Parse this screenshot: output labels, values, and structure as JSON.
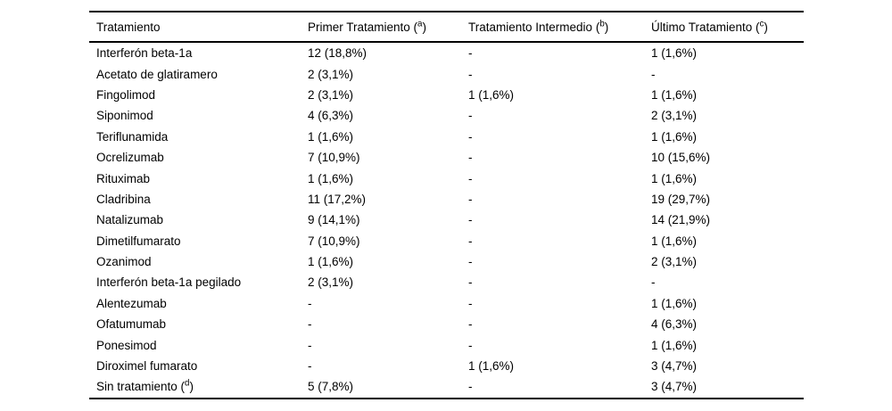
{
  "page": {
    "background_color": "#ffffff",
    "text_color": "#000000",
    "rule_color": "#000000"
  },
  "table": {
    "columns": [
      {
        "label": "Tratamiento",
        "sup": null
      },
      {
        "label": "Primer Tratamiento",
        "sup": "a"
      },
      {
        "label": "Tratamiento Intermedio",
        "sup": "b"
      },
      {
        "label": "Último Tratamiento",
        "sup": "c"
      }
    ],
    "rows": [
      {
        "name": "Interferón beta-1a",
        "sup": null,
        "cells": [
          "12 (18,8%)",
          "-",
          "1 (1,6%)"
        ]
      },
      {
        "name": "Acetato de glatiramero",
        "sup": null,
        "cells": [
          "2 (3,1%)",
          "-",
          "-"
        ]
      },
      {
        "name": "Fingolimod",
        "sup": null,
        "cells": [
          "2 (3,1%)",
          "1 (1,6%)",
          "1 (1,6%)"
        ]
      },
      {
        "name": "Siponimod",
        "sup": null,
        "cells": [
          "4 (6,3%)",
          "-",
          "2 (3,1%)"
        ]
      },
      {
        "name": "Teriflunamida",
        "sup": null,
        "cells": [
          "1 (1,6%)",
          "-",
          "1 (1,6%)"
        ]
      },
      {
        "name": "Ocrelizumab",
        "sup": null,
        "cells": [
          "7 (10,9%)",
          "-",
          "10 (15,6%)"
        ]
      },
      {
        "name": "Rituximab",
        "sup": null,
        "cells": [
          "1 (1,6%)",
          "-",
          "1 (1,6%)"
        ]
      },
      {
        "name": "Cladribina",
        "sup": null,
        "cells": [
          "11 (17,2%)",
          "-",
          "19 (29,7%)"
        ]
      },
      {
        "name": "Natalizumab",
        "sup": null,
        "cells": [
          "9 (14,1%)",
          "-",
          "14 (21,9%)"
        ]
      },
      {
        "name": "Dimetilfumarato",
        "sup": null,
        "cells": [
          "7 (10,9%)",
          "-",
          "1 (1,6%)"
        ]
      },
      {
        "name": "Ozanimod",
        "sup": null,
        "cells": [
          "1 (1,6%)",
          "-",
          "2 (3,1%)"
        ]
      },
      {
        "name": "Interferón beta-1a pegilado",
        "sup": null,
        "cells": [
          "2 (3,1%)",
          "-",
          "-"
        ]
      },
      {
        "name": "Alentezumab",
        "sup": null,
        "cells": [
          "-",
          "-",
          "1 (1,6%)"
        ]
      },
      {
        "name": "Ofatumumab",
        "sup": null,
        "cells": [
          "-",
          "-",
          "4 (6,3%)"
        ]
      },
      {
        "name": "Ponesimod",
        "sup": null,
        "cells": [
          "-",
          "-",
          "1 (1,6%)"
        ]
      },
      {
        "name": "Diroximel fumarato",
        "sup": null,
        "cells": [
          "-",
          "1 (1,6%)",
          "3 (4,7%)"
        ]
      },
      {
        "name": "Sin tratamiento",
        "sup": "d",
        "cells": [
          "5 (7,8%)",
          "-",
          "3 (4,7%)"
        ]
      }
    ]
  }
}
